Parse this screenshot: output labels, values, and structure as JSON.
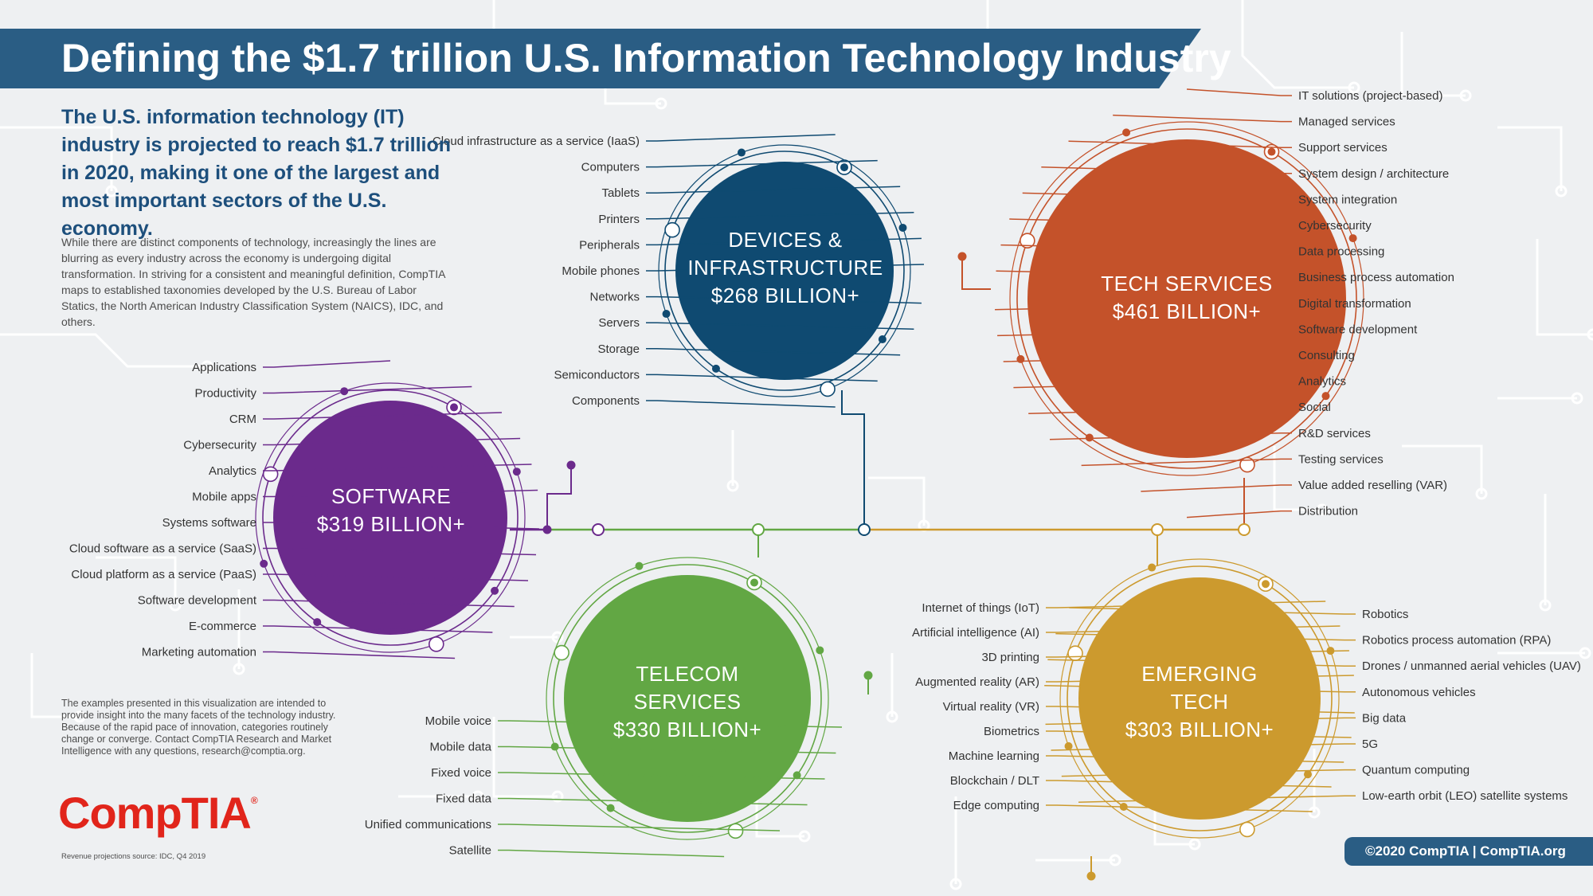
{
  "title": "Defining the $1.7 trillion U.S. Information Technology Industry",
  "intro": "The U.S. information technology (IT) industry is projected to reach $1.7 trillion in 2020, making it one of the largest and most important sectors of the U.S. economy.",
  "body": "While there are distinct components of technology, increasingly the lines are blurring as every industry across the economy is undergoing digital transformation. In striving for a consistent and meaningful definition, CompTIA maps to established taxonomies developed by the U.S. Bureau of Labor Statics, the North American Industry Classification System (NAICS), IDC, and others.",
  "note": "The examples presented in this visualization are intended to provide insight into the many facets of the technology industry. Because of the rapid pace of innovation, categories routinely change or converge. Contact CompTIA Research and Market Intelligence with any questions, research@comptia.org.",
  "logo": "CompTIA",
  "source": "Revenue projections source: IDC, Q4 2019",
  "copyright": "©2020 CompTIA | CompTIA.org",
  "colors": {
    "devices": "#0f4a71",
    "tech_services": "#c4522a",
    "software": "#6b2a8c",
    "telecom": "#62a744",
    "emerging": "#cc9a2e",
    "title_bar": "#2a5d84",
    "logo": "#e1251b"
  },
  "segments": {
    "devices": {
      "name_lines": [
        "DEVICES &",
        "INFRASTRUCTURE"
      ],
      "value": "$268 BILLION+",
      "items": [
        "Cloud infrastructure as a service (IaaS)",
        "Computers",
        "Tablets",
        "Printers",
        "Peripherals",
        "Mobile phones",
        "Networks",
        "Servers",
        "Storage",
        "Semiconductors",
        "Components"
      ]
    },
    "tech_services": {
      "name_lines": [
        "TECH SERVICES"
      ],
      "value": "$461 BILLION+",
      "items": [
        "IT solutions (project-based)",
        "Managed services",
        "Support services",
        "System design / architecture",
        "System integration",
        "Cybersecurity",
        "Data processing",
        "Business process automation",
        "Digital transformation",
        "Software development",
        "Consulting",
        "Analytics",
        "Social",
        "R&D services",
        "Testing services",
        "Value added reselling (VAR)",
        "Distribution"
      ]
    },
    "software": {
      "name_lines": [
        "SOFTWARE"
      ],
      "value": "$319 BILLION+",
      "items": [
        "Applications",
        "Productivity",
        "CRM",
        "Cybersecurity",
        "Analytics",
        "Mobile apps",
        "Systems software",
        "Cloud software as a service (SaaS)",
        "Cloud platform as a service (PaaS)",
        "Software development",
        "E-commerce",
        "Marketing automation"
      ]
    },
    "telecom": {
      "name_lines": [
        "TELECOM",
        "SERVICES"
      ],
      "value": "$330 BILLION+",
      "items": [
        "Mobile voice",
        "Mobile data",
        "Fixed voice",
        "Fixed data",
        "Unified communications",
        "Satellite"
      ]
    },
    "emerging": {
      "name_lines": [
        "EMERGING",
        "TECH"
      ],
      "value": "$303 BILLION+",
      "items_left": [
        "Internet of things (IoT)",
        "Artificial intelligence (AI)",
        "3D printing",
        "Augmented reality (AR)",
        "Virtual reality (VR)",
        "Biometrics",
        "Machine learning",
        "Blockchain / DLT",
        "Edge computing"
      ],
      "items_right": [
        "Robotics",
        "Robotics process automation (RPA)",
        "Drones / unmanned aerial vehicles (UAV)",
        "Autonomous vehicles",
        "Big data",
        "5G",
        "Quantum computing",
        "Low-earth orbit (LEO) satellite systems"
      ]
    }
  }
}
